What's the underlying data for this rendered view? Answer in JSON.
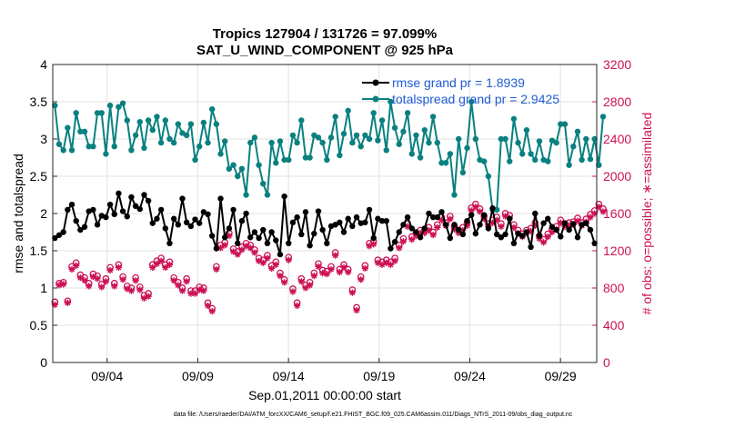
{
  "chart_data": {
    "type": "line",
    "title": "Tropics 127904 / 131726 = 97.099%",
    "subtitle": "SAT_U_WIND_COMPONENT @ 925 hPa",
    "xlabel": "Sep.01,2011 00:00:00 start",
    "ylabel": "rmse and totalspread",
    "y2label": "# of obs: o=possible; ∗=assimilated",
    "footnote": "data file: /Users/raeder/DAI/ATM_forcXX/CAM6_setup/f.e21.FHIST_BGC.f09_025.CAM6assim.011/Diags_NTrS_2011-09/obs_diag_output.nc",
    "x_ticks": [
      "09/04",
      "09/09",
      "09/14",
      "09/19",
      "09/24",
      "09/29"
    ],
    "x_tick_days": [
      4,
      9,
      14,
      19,
      24,
      29
    ],
    "xlim": [
      1.0,
      31.0
    ],
    "ylim": [
      0,
      4
    ],
    "y_ticks": [
      "0",
      "0.5",
      "1",
      "1.5",
      "2",
      "2.5",
      "3",
      "3.5",
      "4"
    ],
    "y2lim": [
      0,
      3200
    ],
    "y2_ticks": [
      "0",
      "400",
      "800",
      "1200",
      "1600",
      "2000",
      "2400",
      "2800",
      "3200"
    ],
    "grid": true,
    "legend_position": "top-right",
    "colors": {
      "rmse": "#000000",
      "totalspread": "#0a8080",
      "obs": "#cc1155",
      "legend_text": "#1f5bd6"
    },
    "series": [
      {
        "name": "rmse grand pr = 1.8939",
        "axis": "left",
        "values": [
          1.67,
          1.71,
          1.75,
          2.05,
          2.12,
          1.9,
          1.78,
          1.82,
          2.03,
          2.05,
          1.85,
          1.97,
          1.95,
          2.12,
          1.99,
          2.27,
          2.03,
          1.96,
          2.22,
          2.1,
          2.06,
          2.25,
          2.17,
          1.87,
          1.93,
          2.05,
          1.8,
          1.6,
          1.93,
          1.85,
          2.2,
          1.88,
          1.83,
          1.92,
          1.87,
          2.02,
          1.99,
          1.7,
          1.53,
          2.2,
          1.68,
          1.8,
          2.05,
          1.6,
          1.9,
          2.0,
          1.68,
          1.75,
          1.67,
          1.78,
          1.6,
          1.75,
          1.64,
          1.45,
          2.23,
          1.6,
          1.88,
          1.95,
          1.72,
          2.02,
          1.57,
          1.73,
          2.03,
          1.78,
          1.6,
          1.83,
          1.85,
          1.88,
          1.75,
          1.93,
          1.83,
          1.95,
          1.87,
          1.88,
          2.05,
          1.67,
          1.93,
          1.9,
          1.9,
          1.53,
          1.62,
          1.75,
          1.85,
          1.95,
          1.8,
          1.75,
          1.68,
          1.8,
          2.0,
          1.95,
          1.95,
          2.02,
          1.85,
          1.67,
          1.85,
          1.78,
          1.72,
          1.9,
          1.98,
          1.73,
          1.85,
          1.98,
          1.8,
          2.07,
          1.72,
          1.68,
          1.72,
          1.93,
          1.6,
          1.73,
          1.7,
          1.75,
          1.55,
          2.0,
          1.7,
          1.87,
          1.93,
          1.82,
          1.78,
          1.69,
          1.87,
          1.78,
          1.86,
          1.68,
          1.85,
          1.87,
          1.78,
          1.6
        ]
      },
      {
        "name": "totalspread grand pr = 2.9425",
        "axis": "left",
        "values": [
          3.45,
          2.93,
          2.85,
          3.15,
          2.85,
          3.35,
          3.1,
          3.1,
          2.9,
          2.9,
          3.35,
          3.35,
          2.8,
          3.45,
          2.9,
          3.43,
          3.48,
          3.25,
          2.85,
          3.05,
          3.23,
          2.88,
          3.25,
          3.12,
          3.3,
          2.95,
          3.25,
          3.0,
          2.95,
          3.2,
          3.08,
          3.05,
          3.2,
          2.72,
          2.9,
          3.22,
          2.95,
          3.4,
          3.2,
          2.8,
          2.97,
          2.6,
          2.65,
          2.5,
          2.6,
          2.25,
          2.95,
          3.02,
          2.65,
          2.4,
          2.25,
          2.95,
          2.68,
          2.97,
          2.72,
          2.72,
          3.05,
          2.95,
          3.25,
          2.75,
          2.75,
          3.05,
          3.02,
          2.95,
          2.72,
          3.02,
          3.3,
          2.78,
          3.07,
          3.38,
          2.95,
          3.05,
          2.9,
          3.05,
          3.0,
          3.35,
          2.98,
          3.25,
          2.85,
          3.5,
          3.15,
          2.93,
          3.1,
          3.35,
          2.8,
          3.05,
          2.75,
          3.12,
          2.95,
          3.3,
          2.95,
          2.68,
          2.68,
          2.8,
          2.25,
          3.0,
          2.55,
          2.88,
          3.5,
          3.0,
          2.72,
          2.7,
          2.5,
          2.05,
          2.05,
          3.0,
          3.0,
          2.7,
          3.27,
          2.95,
          2.8,
          3.12,
          2.8,
          2.72,
          2.97,
          2.72,
          2.7,
          2.98,
          2.95,
          3.2,
          3.2,
          2.65,
          2.9,
          3.1,
          2.72,
          3.0,
          2.73,
          3.0,
          2.65,
          3.3
        ]
      },
      {
        "name": "possible",
        "axis": "right",
        "marker": "o",
        "values": [
          650,
          850,
          860,
          660,
          1030,
          1070,
          940,
          910,
          850,
          950,
          930,
          840,
          900,
          1020,
          850,
          1050,
          920,
          820,
          800,
          910,
          810,
          720,
          740,
          1050,
          1090,
          1120,
          1050,
          1080,
          910,
          860,
          800,
          900,
          770,
          770,
          810,
          800,
          640,
          580,
          1030,
          1260,
          1290,
          1390,
          1220,
          1190,
          1240,
          1280,
          1260,
          1210,
          1120,
          1100,
          1150,
          1040,
          1080,
          960,
          890,
          1130,
          790,
          640,
          900,
          830,
          860,
          960,
          1060,
          990,
          980,
          1030,
          1180,
          1000,
          1050,
          1000,
          780,
          590,
          920,
          1040,
          1280,
          1300,
          1100,
          1080,
          1100,
          1080,
          1120,
          1260,
          1330,
          1490,
          1350,
          1390,
          1420,
          1420,
          1450,
          1400,
          1480,
          1560,
          1500,
          1570,
          1460,
          1420,
          1450,
          1500,
          1660,
          1700,
          1650,
          1570,
          1490,
          1530,
          1560,
          1490,
          1600,
          1580,
          1480,
          1420,
          1380,
          1420,
          1440,
          1500,
          1360,
          1320,
          1380,
          1430,
          1460,
          1530,
          1490,
          1500,
          1510,
          1550,
          1500,
          1540,
          1590,
          1630,
          1700,
          1650
        ]
      },
      {
        "name": "assimilated",
        "axis": "right",
        "marker": "*",
        "values": [
          620,
          830,
          840,
          640,
          1000,
          1040,
          910,
          880,
          820,
          920,
          900,
          810,
          870,
          990,
          820,
          1020,
          890,
          790,
          770,
          880,
          780,
          690,
          710,
          1020,
          1060,
          1090,
          1020,
          1050,
          880,
          830,
          770,
          870,
          740,
          740,
          780,
          770,
          610,
          550,
          1000,
          1230,
          1260,
          1360,
          1190,
          1160,
          1210,
          1250,
          1230,
          1180,
          1090,
          1070,
          1120,
          1010,
          1050,
          930,
          860,
          1100,
          760,
          610,
          870,
          800,
          830,
          930,
          1030,
          960,
          950,
          1000,
          1150,
          970,
          1020,
          970,
          750,
          560,
          890,
          1010,
          1250,
          1270,
          1070,
          1050,
          1070,
          1050,
          1090,
          1230,
          1300,
          1460,
          1320,
          1360,
          1390,
          1390,
          1420,
          1370,
          1450,
          1530,
          1470,
          1540,
          1430,
          1390,
          1420,
          1470,
          1630,
          1670,
          1620,
          1540,
          1460,
          1500,
          1530,
          1460,
          1570,
          1550,
          1450,
          1390,
          1350,
          1390,
          1410,
          1470,
          1330,
          1290,
          1350,
          1400,
          1430,
          1500,
          1460,
          1470,
          1480,
          1520,
          1470,
          1510,
          1560,
          1600,
          1670,
          1620
        ]
      }
    ]
  }
}
